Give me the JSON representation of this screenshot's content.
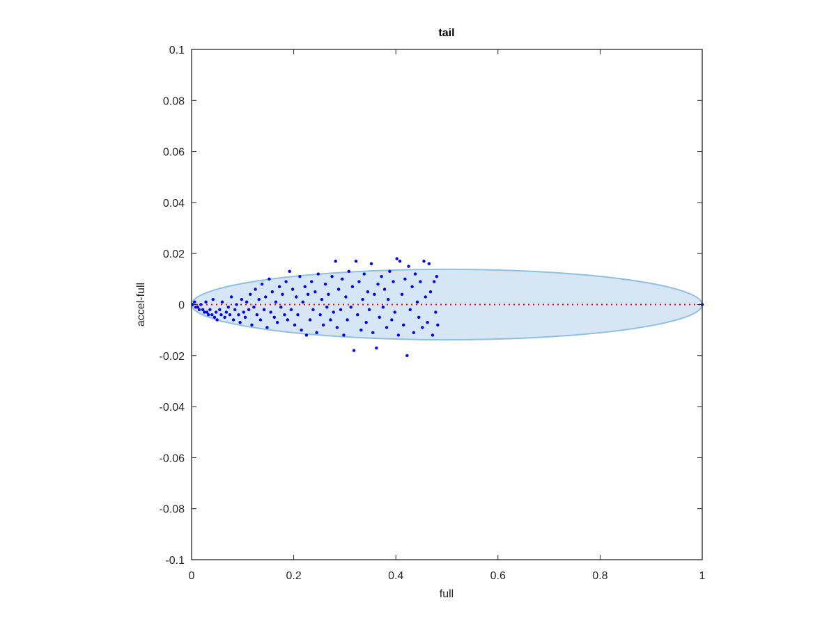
{
  "chart_data": {
    "type": "scatter",
    "title": "tail",
    "x_label": "full",
    "y_label": "accel-full",
    "xlim": [
      0,
      1
    ],
    "ylim": [
      -0.1,
      0.1
    ],
    "xticks": [
      0,
      0.2,
      0.4,
      0.6,
      0.8,
      1
    ],
    "yticks": [
      -0.1,
      -0.08,
      -0.06,
      -0.04,
      -0.02,
      0,
      0.02,
      0.04,
      0.06,
      0.08,
      0.1
    ],
    "ellipse": {
      "center": [
        0.5,
        0
      ],
      "radii": [
        0.5,
        0.0138
      ],
      "fill": "#d6e6f4",
      "stroke": "#8ec0e2"
    },
    "reference_line": {
      "x": [
        0,
        1
      ],
      "y": [
        0,
        0
      ],
      "color": "#ff0000"
    },
    "series": [
      {
        "color": "#0000ff",
        "x": [
          0.002,
          0.006,
          0.008,
          0.012,
          0.015,
          0.018,
          0.022,
          0.025,
          0.028,
          0.03,
          0.033,
          0.036,
          0.04,
          0.042,
          0.045,
          0.048,
          0.05,
          0.055,
          0.058,
          0.06,
          0.065,
          0.068,
          0.072,
          0.075,
          0.078,
          0.082,
          0.085,
          0.088,
          0.092,
          0.095,
          0.098,
          0.102,
          0.105,
          0.108,
          0.112,
          0.115,
          0.118,
          0.122,
          0.125,
          0.128,
          0.132,
          0.135,
          0.138,
          0.142,
          0.145,
          0.148,
          0.152,
          0.155,
          0.158,
          0.162,
          0.165,
          0.168,
          0.172,
          0.175,
          0.178,
          0.182,
          0.185,
          0.188,
          0.192,
          0.195,
          0.198,
          0.202,
          0.205,
          0.208,
          0.212,
          0.215,
          0.218,
          0.222,
          0.225,
          0.228,
          0.232,
          0.235,
          0.238,
          0.242,
          0.245,
          0.248,
          0.252,
          0.255,
          0.258,
          0.262,
          0.265,
          0.268,
          0.272,
          0.275,
          0.278,
          0.282,
          0.285,
          0.288,
          0.292,
          0.295,
          0.298,
          0.302,
          0.305,
          0.308,
          0.312,
          0.315,
          0.318,
          0.322,
          0.325,
          0.328,
          0.332,
          0.335,
          0.338,
          0.342,
          0.345,
          0.348,
          0.352,
          0.355,
          0.358,
          0.362,
          0.365,
          0.368,
          0.372,
          0.375,
          0.378,
          0.382,
          0.385,
          0.388,
          0.392,
          0.395,
          0.398,
          0.402,
          0.405,
          0.408,
          0.412,
          0.415,
          0.418,
          0.422,
          0.425,
          0.428,
          0.432,
          0.435,
          0.438,
          0.442,
          0.445,
          0.448,
          0.452,
          0.455,
          0.458,
          0.462,
          0.465,
          0.468,
          0.472,
          0.475,
          0.478,
          0.48,
          0.482,
          1.0
        ],
        "y": [
          0.0,
          0.001,
          -0.001,
          -0.001,
          -0.002,
          0.0,
          -0.002,
          -0.003,
          0.001,
          -0.003,
          -0.004,
          -0.002,
          -0.004,
          0.002,
          -0.005,
          -0.003,
          -0.006,
          -0.002,
          -0.004,
          0.001,
          -0.005,
          -0.003,
          -0.001,
          -0.004,
          0.003,
          -0.006,
          -0.002,
          0.0,
          -0.004,
          -0.007,
          0.002,
          -0.003,
          -0.005,
          0.001,
          -0.002,
          0.004,
          -0.008,
          -0.001,
          0.006,
          -0.004,
          0.002,
          -0.006,
          0.008,
          -0.002,
          0.003,
          -0.009,
          0.01,
          -0.003,
          0.005,
          -0.005,
          0.001,
          -0.007,
          0.007,
          -0.001,
          0.004,
          -0.004,
          0.009,
          -0.006,
          0.013,
          -0.002,
          0.006,
          -0.008,
          0.003,
          -0.004,
          0.011,
          -0.01,
          0.001,
          0.007,
          -0.012,
          0.004,
          -0.006,
          0.009,
          -0.002,
          0.005,
          -0.011,
          0.012,
          -0.004,
          0.002,
          -0.008,
          0.008,
          -0.001,
          0.004,
          -0.006,
          0.011,
          -0.003,
          0.017,
          -0.009,
          0.006,
          -0.002,
          0.01,
          -0.012,
          0.003,
          -0.006,
          0.013,
          -0.001,
          0.007,
          -0.018,
          0.017,
          -0.004,
          0.009,
          -0.01,
          0.002,
          0.012,
          -0.007,
          0.005,
          -0.002,
          0.016,
          -0.011,
          0.004,
          -0.017,
          0.008,
          -0.005,
          0.011,
          -0.001,
          0.006,
          -0.009,
          0.002,
          0.013,
          -0.006,
          0.009,
          -0.003,
          0.018,
          -0.012,
          0.017,
          0.004,
          -0.008,
          0.01,
          -0.02,
          0.015,
          -0.002,
          0.007,
          -0.011,
          0.012,
          0.001,
          -0.005,
          0.009,
          -0.009,
          0.017,
          0.003,
          -0.007,
          0.016,
          0.005,
          -0.012,
          0.009,
          -0.003,
          0.011,
          -0.008,
          0.0
        ]
      }
    ]
  }
}
